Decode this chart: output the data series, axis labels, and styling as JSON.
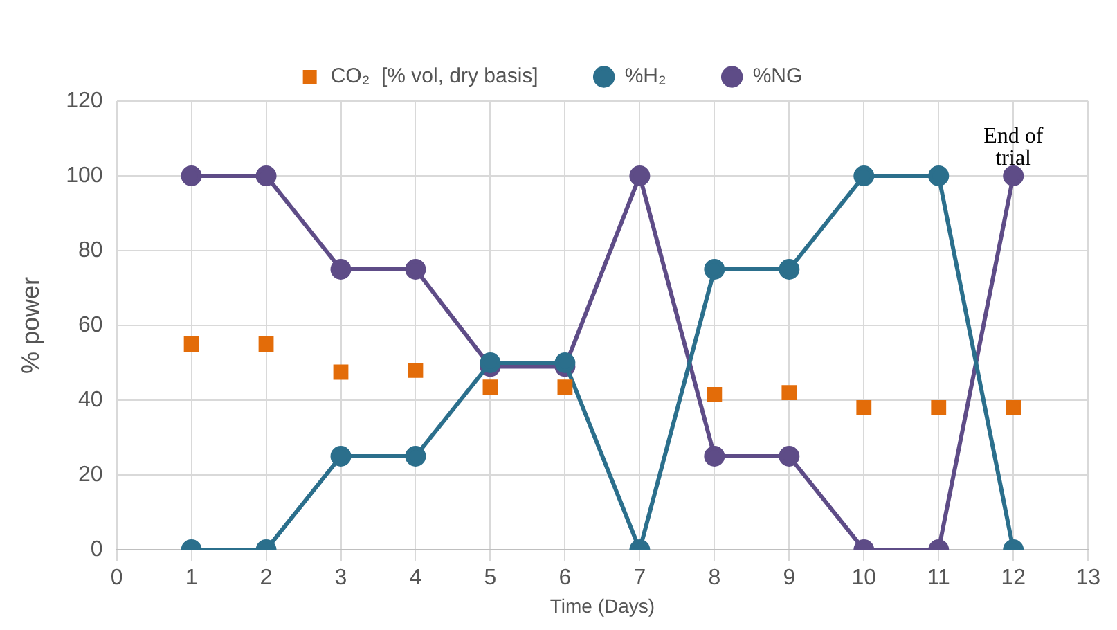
{
  "chart_data": {
    "type": "line",
    "xlabel": "Time (Days)",
    "ylabel": "% power",
    "x": [
      1,
      2,
      3,
      4,
      5,
      6,
      7,
      8,
      9,
      10,
      11,
      12
    ],
    "series": [
      {
        "name": "%NG",
        "color": "#5e4c87",
        "values": [
          100,
          100,
          75,
          75,
          49,
          49,
          100,
          25,
          25,
          0,
          0,
          100
        ]
      },
      {
        "name": "%H₂",
        "color": "#2b6f8c",
        "values": [
          0,
          0,
          25,
          25,
          50,
          50,
          0,
          75,
          75,
          100,
          100,
          0
        ]
      },
      {
        "name": "CO₂  [% vol, dry basis]",
        "type": "scatter",
        "marker": "square",
        "color": "#e36c09",
        "values": [
          55,
          55,
          47.5,
          48,
          43.5,
          43.5,
          null,
          41.5,
          42,
          38,
          38,
          38
        ]
      }
    ],
    "xlim": [
      0,
      13
    ],
    "xticks": [
      0,
      1,
      2,
      3,
      4,
      5,
      6,
      7,
      8,
      9,
      10,
      11,
      12,
      13
    ],
    "ylim": [
      0,
      120
    ],
    "yticks": [
      0,
      20,
      40,
      60,
      80,
      100,
      120
    ],
    "annotations": [
      {
        "text": "End of trial",
        "x": 12,
        "y": 100
      }
    ],
    "grid": true,
    "legend": "top",
    "marker": "circle",
    "line_style": "solid"
  }
}
